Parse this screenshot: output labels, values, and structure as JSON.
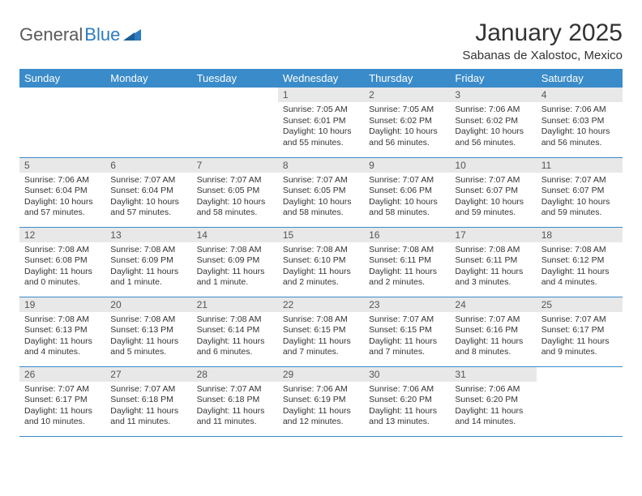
{
  "brand": {
    "text1": "General",
    "text2": "Blue"
  },
  "title": "January 2025",
  "location": "Sabanas de Xalostoc, Mexico",
  "colors": {
    "header_bg": "#3a8bc9",
    "header_fg": "#ffffff",
    "daynum_bg": "#e8e8e8",
    "row_border": "#3a8bc9",
    "brand_gray": "#5a5a5a",
    "brand_blue": "#2d7bc0"
  },
  "weekdays": [
    "Sunday",
    "Monday",
    "Tuesday",
    "Wednesday",
    "Thursday",
    "Friday",
    "Saturday"
  ],
  "weeks": [
    [
      {
        "n": "",
        "sr": "",
        "ss": "",
        "dl": "",
        "empty": true
      },
      {
        "n": "",
        "sr": "",
        "ss": "",
        "dl": "",
        "empty": true
      },
      {
        "n": "",
        "sr": "",
        "ss": "",
        "dl": "",
        "empty": true
      },
      {
        "n": "1",
        "sr": "Sunrise: 7:05 AM",
        "ss": "Sunset: 6:01 PM",
        "dl": "Daylight: 10 hours and 55 minutes."
      },
      {
        "n": "2",
        "sr": "Sunrise: 7:05 AM",
        "ss": "Sunset: 6:02 PM",
        "dl": "Daylight: 10 hours and 56 minutes."
      },
      {
        "n": "3",
        "sr": "Sunrise: 7:06 AM",
        "ss": "Sunset: 6:02 PM",
        "dl": "Daylight: 10 hours and 56 minutes."
      },
      {
        "n": "4",
        "sr": "Sunrise: 7:06 AM",
        "ss": "Sunset: 6:03 PM",
        "dl": "Daylight: 10 hours and 56 minutes."
      }
    ],
    [
      {
        "n": "5",
        "sr": "Sunrise: 7:06 AM",
        "ss": "Sunset: 6:04 PM",
        "dl": "Daylight: 10 hours and 57 minutes."
      },
      {
        "n": "6",
        "sr": "Sunrise: 7:07 AM",
        "ss": "Sunset: 6:04 PM",
        "dl": "Daylight: 10 hours and 57 minutes."
      },
      {
        "n": "7",
        "sr": "Sunrise: 7:07 AM",
        "ss": "Sunset: 6:05 PM",
        "dl": "Daylight: 10 hours and 58 minutes."
      },
      {
        "n": "8",
        "sr": "Sunrise: 7:07 AM",
        "ss": "Sunset: 6:05 PM",
        "dl": "Daylight: 10 hours and 58 minutes."
      },
      {
        "n": "9",
        "sr": "Sunrise: 7:07 AM",
        "ss": "Sunset: 6:06 PM",
        "dl": "Daylight: 10 hours and 58 minutes."
      },
      {
        "n": "10",
        "sr": "Sunrise: 7:07 AM",
        "ss": "Sunset: 6:07 PM",
        "dl": "Daylight: 10 hours and 59 minutes."
      },
      {
        "n": "11",
        "sr": "Sunrise: 7:07 AM",
        "ss": "Sunset: 6:07 PM",
        "dl": "Daylight: 10 hours and 59 minutes."
      }
    ],
    [
      {
        "n": "12",
        "sr": "Sunrise: 7:08 AM",
        "ss": "Sunset: 6:08 PM",
        "dl": "Daylight: 11 hours and 0 minutes."
      },
      {
        "n": "13",
        "sr": "Sunrise: 7:08 AM",
        "ss": "Sunset: 6:09 PM",
        "dl": "Daylight: 11 hours and 1 minute."
      },
      {
        "n": "14",
        "sr": "Sunrise: 7:08 AM",
        "ss": "Sunset: 6:09 PM",
        "dl": "Daylight: 11 hours and 1 minute."
      },
      {
        "n": "15",
        "sr": "Sunrise: 7:08 AM",
        "ss": "Sunset: 6:10 PM",
        "dl": "Daylight: 11 hours and 2 minutes."
      },
      {
        "n": "16",
        "sr": "Sunrise: 7:08 AM",
        "ss": "Sunset: 6:11 PM",
        "dl": "Daylight: 11 hours and 2 minutes."
      },
      {
        "n": "17",
        "sr": "Sunrise: 7:08 AM",
        "ss": "Sunset: 6:11 PM",
        "dl": "Daylight: 11 hours and 3 minutes."
      },
      {
        "n": "18",
        "sr": "Sunrise: 7:08 AM",
        "ss": "Sunset: 6:12 PM",
        "dl": "Daylight: 11 hours and 4 minutes."
      }
    ],
    [
      {
        "n": "19",
        "sr": "Sunrise: 7:08 AM",
        "ss": "Sunset: 6:13 PM",
        "dl": "Daylight: 11 hours and 4 minutes."
      },
      {
        "n": "20",
        "sr": "Sunrise: 7:08 AM",
        "ss": "Sunset: 6:13 PM",
        "dl": "Daylight: 11 hours and 5 minutes."
      },
      {
        "n": "21",
        "sr": "Sunrise: 7:08 AM",
        "ss": "Sunset: 6:14 PM",
        "dl": "Daylight: 11 hours and 6 minutes."
      },
      {
        "n": "22",
        "sr": "Sunrise: 7:08 AM",
        "ss": "Sunset: 6:15 PM",
        "dl": "Daylight: 11 hours and 7 minutes."
      },
      {
        "n": "23",
        "sr": "Sunrise: 7:07 AM",
        "ss": "Sunset: 6:15 PM",
        "dl": "Daylight: 11 hours and 7 minutes."
      },
      {
        "n": "24",
        "sr": "Sunrise: 7:07 AM",
        "ss": "Sunset: 6:16 PM",
        "dl": "Daylight: 11 hours and 8 minutes."
      },
      {
        "n": "25",
        "sr": "Sunrise: 7:07 AM",
        "ss": "Sunset: 6:17 PM",
        "dl": "Daylight: 11 hours and 9 minutes."
      }
    ],
    [
      {
        "n": "26",
        "sr": "Sunrise: 7:07 AM",
        "ss": "Sunset: 6:17 PM",
        "dl": "Daylight: 11 hours and 10 minutes."
      },
      {
        "n": "27",
        "sr": "Sunrise: 7:07 AM",
        "ss": "Sunset: 6:18 PM",
        "dl": "Daylight: 11 hours and 11 minutes."
      },
      {
        "n": "28",
        "sr": "Sunrise: 7:07 AM",
        "ss": "Sunset: 6:18 PM",
        "dl": "Daylight: 11 hours and 11 minutes."
      },
      {
        "n": "29",
        "sr": "Sunrise: 7:06 AM",
        "ss": "Sunset: 6:19 PM",
        "dl": "Daylight: 11 hours and 12 minutes."
      },
      {
        "n": "30",
        "sr": "Sunrise: 7:06 AM",
        "ss": "Sunset: 6:20 PM",
        "dl": "Daylight: 11 hours and 13 minutes."
      },
      {
        "n": "31",
        "sr": "Sunrise: 7:06 AM",
        "ss": "Sunset: 6:20 PM",
        "dl": "Daylight: 11 hours and 14 minutes."
      },
      {
        "n": "",
        "sr": "",
        "ss": "",
        "dl": "",
        "empty": true
      }
    ]
  ]
}
